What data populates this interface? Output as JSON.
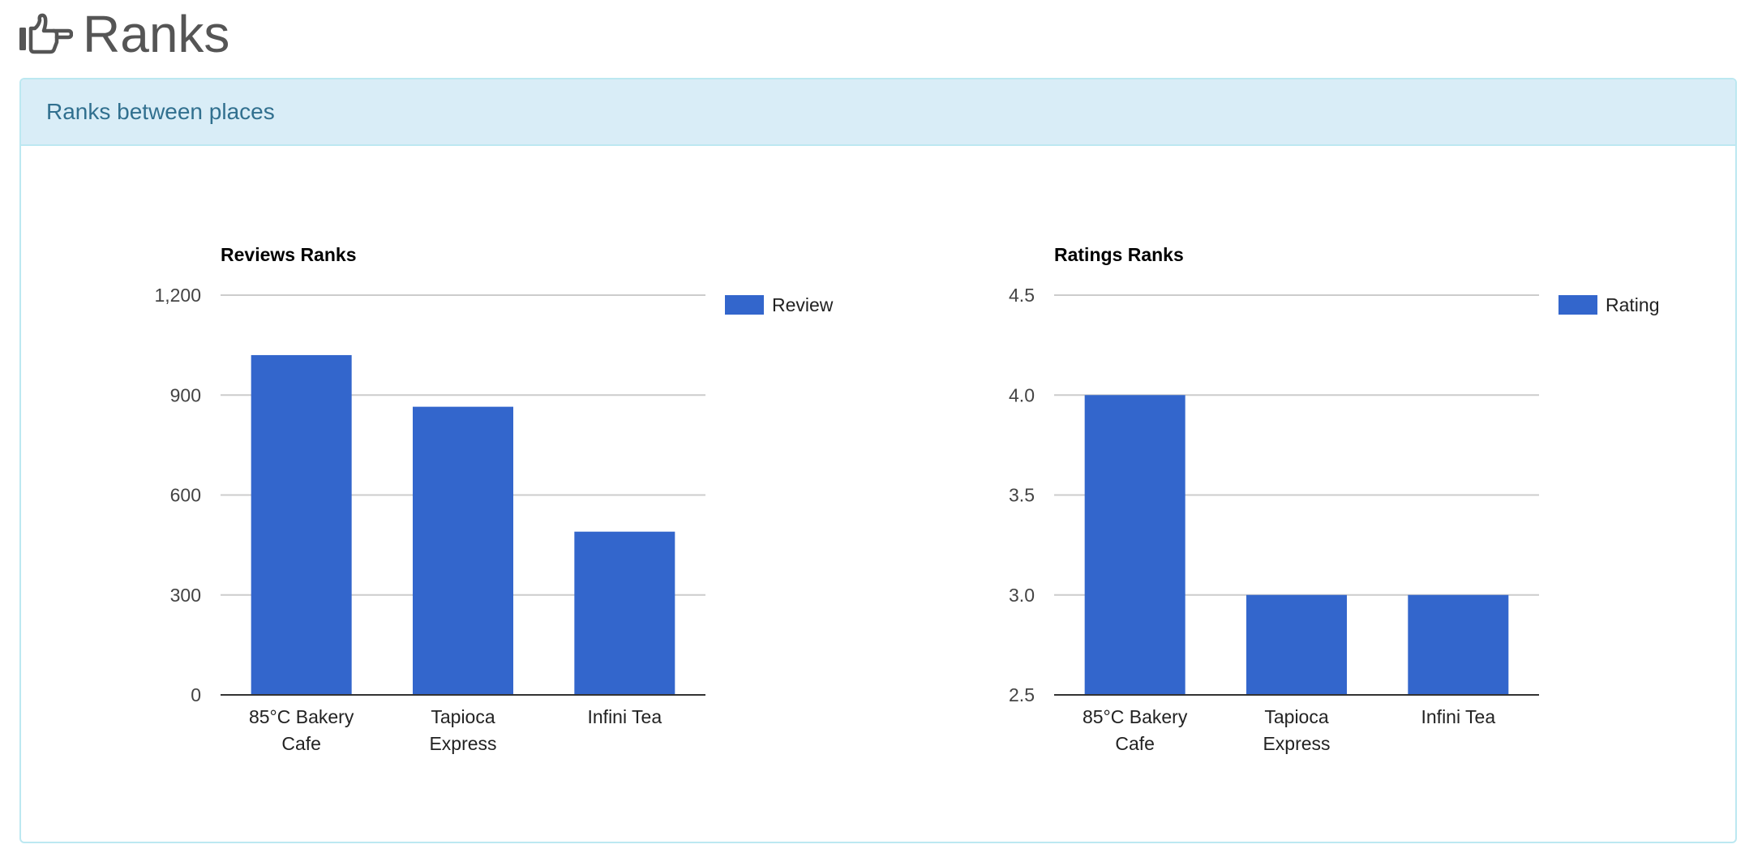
{
  "header": {
    "title": "Ranks",
    "icon": "pointing-hand-icon"
  },
  "panel": {
    "title": "Ranks between places"
  },
  "colors": {
    "bar": "#3366cc",
    "grid": "#cccccc",
    "baseline": "#333333",
    "panel_heading_bg": "#d9edf7",
    "panel_border": "#bce8f1",
    "panel_title": "#31708f"
  },
  "chart_data": [
    {
      "type": "bar",
      "title": "Reviews Ranks",
      "categories": [
        "85°C Bakery Cafe",
        "Tapioca Express",
        "Infini Tea"
      ],
      "category_lines": [
        [
          "85°C Bakery",
          "Cafe"
        ],
        [
          "Tapioca",
          "Express"
        ],
        [
          "Infini Tea"
        ]
      ],
      "series": [
        {
          "name": "Review",
          "values": [
            1020,
            865,
            490
          ]
        }
      ],
      "xlabel": "",
      "ylabel": "",
      "ylim": [
        0,
        1200
      ],
      "yticks": [
        0,
        300,
        600,
        900,
        1200
      ],
      "ytick_labels": [
        "0",
        "300",
        "600",
        "900",
        "1,200"
      ],
      "grid": true,
      "legend": "right"
    },
    {
      "type": "bar",
      "title": "Ratings Ranks",
      "categories": [
        "85°C Bakery Cafe",
        "Tapioca Express",
        "Infini Tea"
      ],
      "category_lines": [
        [
          "85°C Bakery",
          "Cafe"
        ],
        [
          "Tapioca",
          "Express"
        ],
        [
          "Infini Tea"
        ]
      ],
      "series": [
        {
          "name": "Rating",
          "values": [
            4.0,
            3.0,
            3.0
          ]
        }
      ],
      "xlabel": "",
      "ylabel": "",
      "ylim": [
        2.5,
        4.5
      ],
      "yticks": [
        2.5,
        3.0,
        3.5,
        4.0,
        4.5
      ],
      "ytick_labels": [
        "2.5",
        "3.0",
        "3.5",
        "4.0",
        "4.5"
      ],
      "grid": true,
      "legend": "right"
    }
  ]
}
